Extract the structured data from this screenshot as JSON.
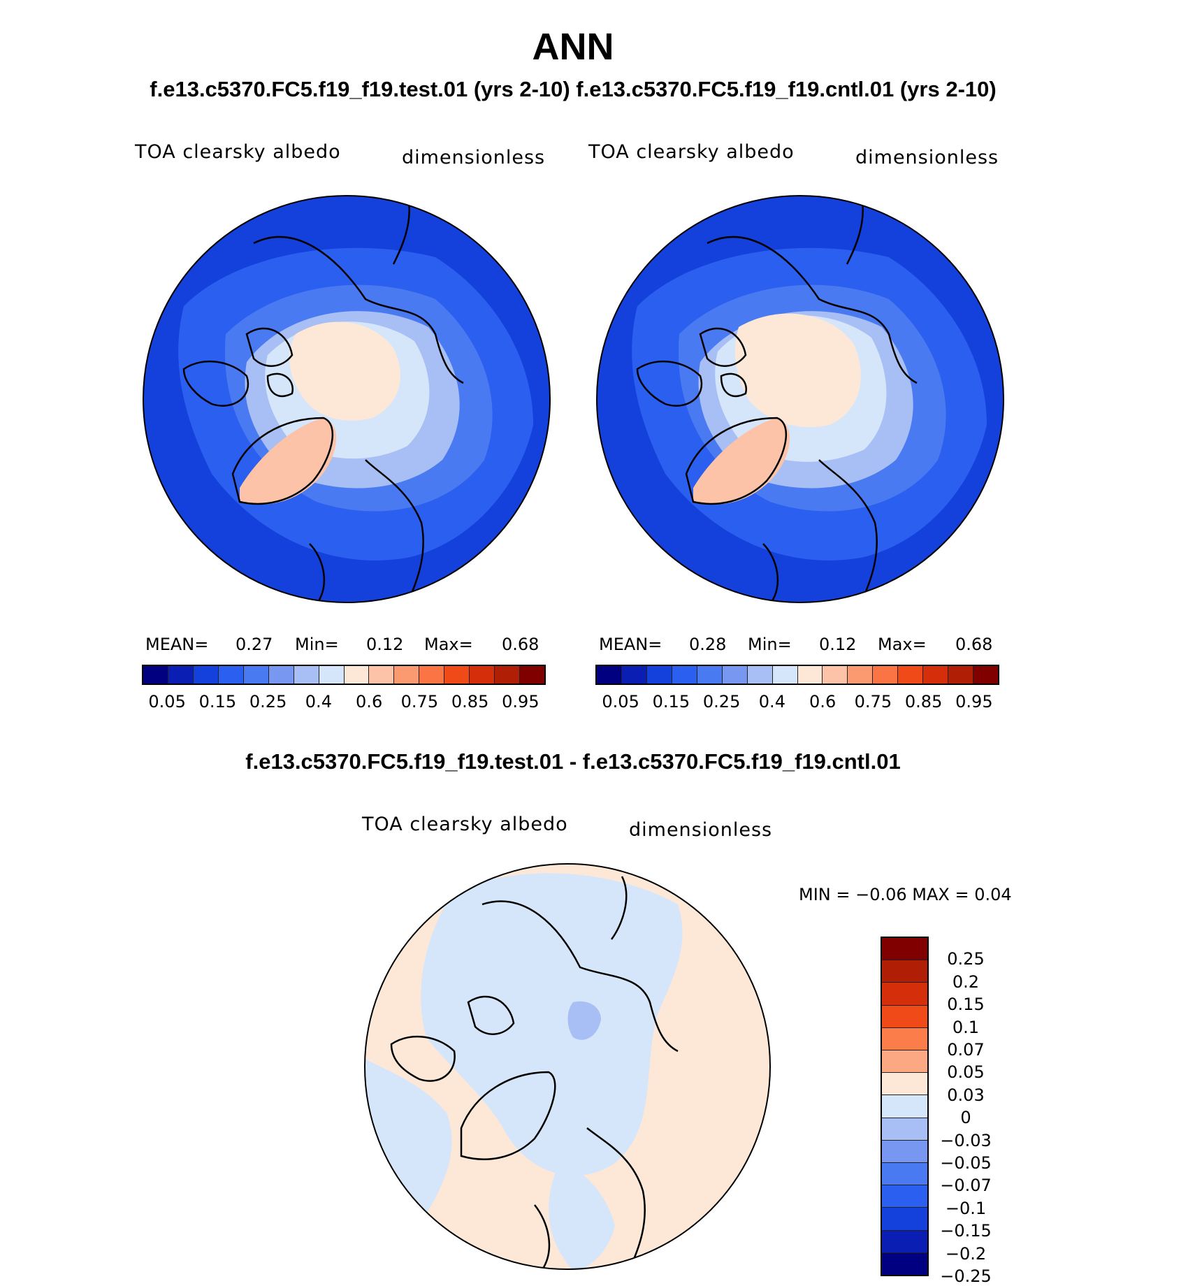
{
  "main_title": "ANN",
  "case_title": "f.e13.c5370.FC5.f19_f19.test.01 (yrs 2-10) f.e13.c5370.FC5.f19_f19.cntl.01 (yrs 2-10)",
  "diff_title": "f.e13.c5370.FC5.f19_f19.test.01 - f.e13.c5370.FC5.f19_f19.cntl.01",
  "panels": [
    {
      "variable": "TOA clearsky albedo",
      "units": "dimensionless",
      "mean_label": "MEAN=",
      "mean": "0.27",
      "min_label": "Min=",
      "min": "0.12",
      "max_label": "Max=",
      "max": "0.68"
    },
    {
      "variable": "TOA clearsky albedo",
      "units": "dimensionless",
      "mean_label": "MEAN=",
      "mean": "0.28",
      "min_label": "Min=",
      "min": "0.12",
      "max_label": "Max=",
      "max": "0.68"
    }
  ],
  "diff_panel": {
    "variable": "TOA clearsky albedo",
    "units": "dimensionless",
    "minmax": "MIN =   −0.06 MAX =     0.04"
  },
  "colorbar": {
    "colors": [
      "#000080",
      "#0a1eb4",
      "#1440dc",
      "#2a5ff0",
      "#4a7af2",
      "#7797f0",
      "#a7bff4",
      "#d5e6fb",
      "#fde8d8",
      "#fcc3a8",
      "#fb9a70",
      "#fa7444",
      "#f04a18",
      "#d42e0a",
      "#b01e05",
      "#800000"
    ],
    "tick_labels": [
      "0.05",
      "0.15",
      "0.25",
      "0.4",
      "0.6",
      "0.75",
      "0.85",
      "0.95"
    ]
  },
  "diff_colorbar": {
    "colors": [
      "#800000",
      "#b01e05",
      "#d42e0a",
      "#f04a18",
      "#fb7e4a",
      "#fca882",
      "#fde8d8",
      "#d5e6fb",
      "#a7bff4",
      "#7797f0",
      "#4a7af2",
      "#2a5ff0",
      "#1440dc",
      "#0a1eb4",
      "#000080"
    ],
    "tick_labels": [
      "0.25",
      "0.2",
      "0.15",
      "0.1",
      "0.07",
      "0.05",
      "0.03",
      "0",
      "−0.03",
      "−0.05",
      "−0.07",
      "−0.1",
      "−0.15",
      "−0.2",
      "−0.25"
    ]
  }
}
